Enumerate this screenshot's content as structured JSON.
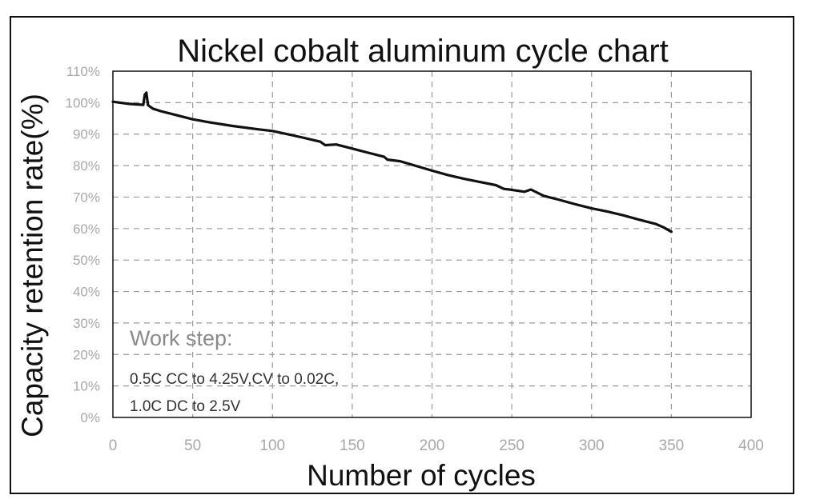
{
  "chart_data": {
    "type": "line",
    "title": "Nickel cobalt aluminum cycle chart",
    "xlabel": "Number of cycles",
    "ylabel": "Capacity retention rate(%)",
    "xlim": [
      0,
      400
    ],
    "ylim": [
      0,
      110
    ],
    "x_ticks": [
      0,
      50,
      100,
      150,
      200,
      250,
      300,
      350,
      400
    ],
    "y_ticks": [
      0,
      10,
      20,
      30,
      40,
      50,
      60,
      70,
      80,
      90,
      100,
      110
    ],
    "y_tick_labels": [
      "0%",
      "10%",
      "20%",
      "30%",
      "40%",
      "50%",
      "60%",
      "70%",
      "80%",
      "90%",
      "100%",
      "110%"
    ],
    "grid": true,
    "series": [
      {
        "name": "Capacity retention",
        "x": [
          0,
          10,
          19,
          20,
          21,
          22,
          25,
          30,
          40,
          50,
          60,
          75,
          90,
          100,
          110,
          120,
          130,
          133,
          140,
          150,
          160,
          170,
          172,
          180,
          190,
          200,
          210,
          220,
          230,
          240,
          245,
          250,
          258,
          262,
          270,
          280,
          290,
          300,
          310,
          320,
          330,
          340,
          345,
          350
        ],
        "y": [
          100.3,
          99.6,
          99.3,
          102.5,
          103.2,
          99.2,
          98.1,
          97.3,
          96.0,
          94.7,
          93.8,
          92.6,
          91.6,
          91.0,
          89.9,
          88.8,
          87.6,
          86.5,
          86.7,
          85.4,
          84.1,
          82.8,
          81.9,
          81.4,
          79.9,
          78.4,
          77.0,
          75.8,
          74.8,
          73.8,
          72.6,
          72.3,
          71.7,
          72.4,
          70.4,
          69.1,
          67.7,
          66.4,
          65.4,
          64.2,
          62.8,
          61.5,
          60.4,
          59.0
        ]
      }
    ],
    "annotation": {
      "heading": "Work step:",
      "lines": [
        "0.5C CC to 4.25V,CV to 0.02C,",
        "1.0C DC to 2.5V"
      ]
    }
  }
}
